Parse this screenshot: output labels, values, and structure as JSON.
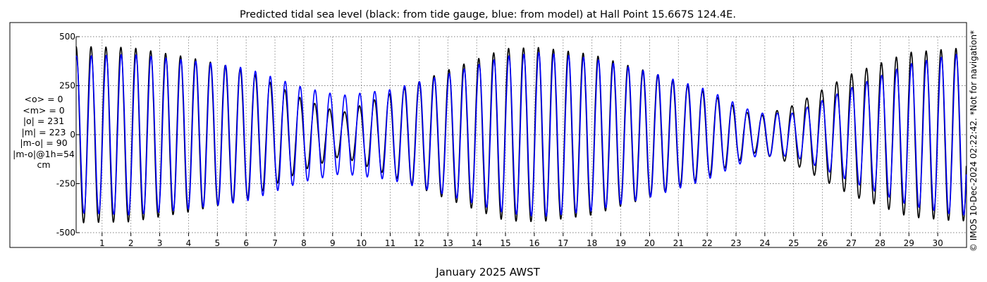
{
  "chart_data": {
    "type": "line",
    "title": "Predicted tidal sea level (black: from tide gauge, blue: from model) at Hall Point 15.667S 124.4E.",
    "xlabel": "January 2025 AWST",
    "ylabel": "",
    "xlim": [
      0.1,
      31.0
    ],
    "ylim": [
      -500,
      500
    ],
    "x_ticks": [
      1,
      2,
      3,
      4,
      5,
      6,
      7,
      8,
      9,
      10,
      11,
      12,
      13,
      14,
      15,
      16,
      17,
      18,
      19,
      20,
      21,
      22,
      23,
      24,
      25,
      26,
      27,
      28,
      29,
      30
    ],
    "y_ticks": [
      500,
      250,
      0,
      -250,
      -500
    ],
    "grid": true,
    "series": [
      {
        "name": "black: from tide gauge",
        "color": "#000000",
        "amplitude_envelope": {
          "day": [
            0.2,
            2.0,
            4.0,
            6.0,
            8.0,
            9.3,
            11.0,
            13.0,
            15.0,
            16.2,
            18.0,
            20.0,
            22.0,
            23.7,
            25.0,
            27.0,
            29.0,
            30.6
          ],
          "amplitude_cm": [
            450,
            445,
            395,
            330,
            180,
            110,
            210,
            330,
            440,
            445,
            410,
            320,
            215,
            90,
            150,
            310,
            420,
            440
          ]
        }
      },
      {
        "name": "blue: from model",
        "color": "#0000ff",
        "amplitude_envelope": {
          "day": [
            0.2,
            2.0,
            4.0,
            6.0,
            8.0,
            9.3,
            11.0,
            13.0,
            15.0,
            16.2,
            18.0,
            20.0,
            22.0,
            23.7,
            25.0,
            27.0,
            29.0,
            30.6
          ],
          "amplitude_cm": [
            400,
            410,
            380,
            340,
            240,
            200,
            230,
            310,
            400,
            420,
            390,
            320,
            230,
            110,
            110,
            240,
            360,
            410
          ]
        }
      }
    ],
    "stats": [
      "<o> = 0",
      "<m> = 0",
      "|o| = 231",
      "|m| = 223",
      "|m-o| = 90",
      "|m-o|@1h=54",
      "cm"
    ],
    "side_note": "© IMOS 10-Dec-2024 02:22:42. *Not for navigation*"
  }
}
